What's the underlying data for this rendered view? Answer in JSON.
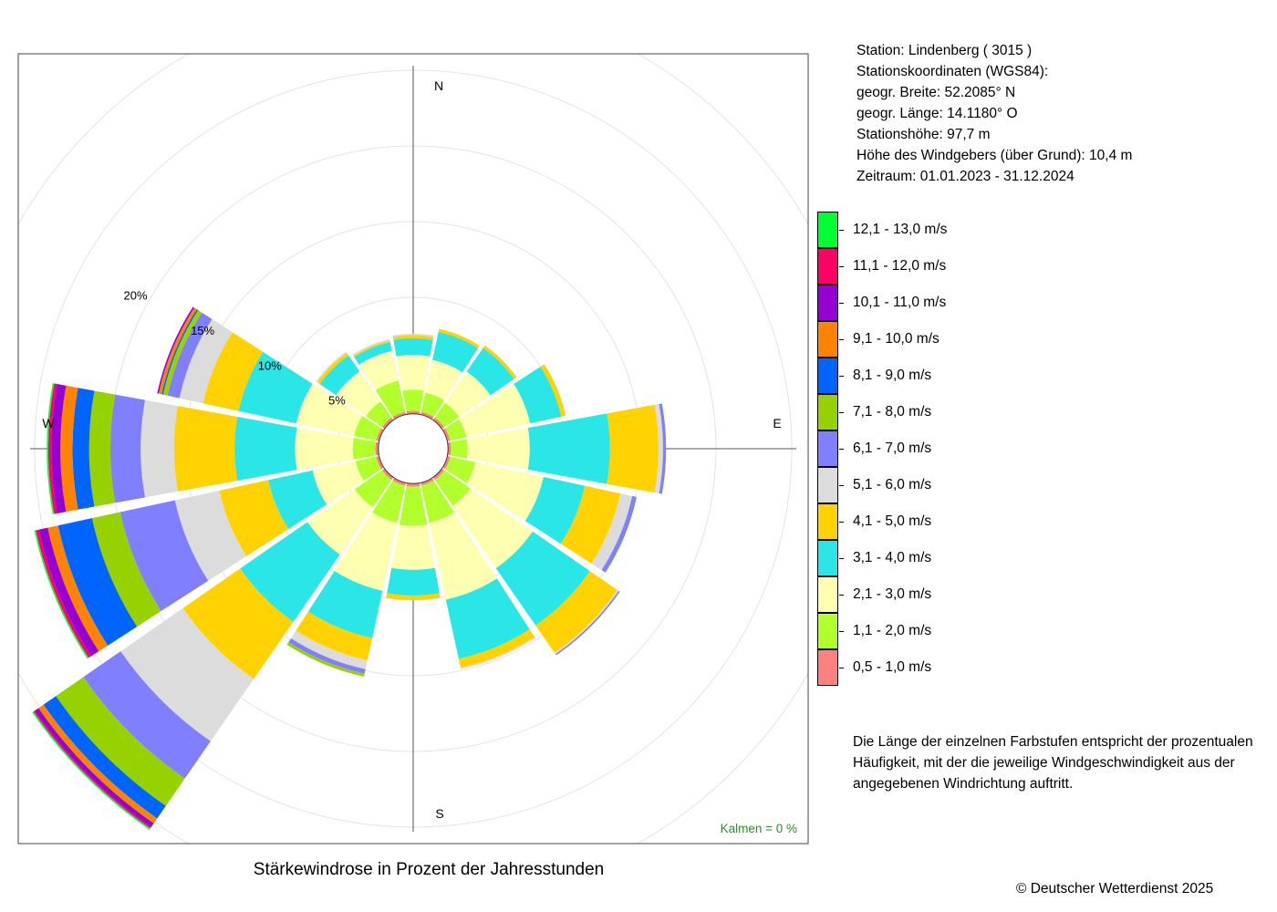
{
  "station": {
    "line1": "Station:  Lindenberg  ( 3015 )",
    "line2": "Stationskoordinaten (WGS84):",
    "line3": "geogr. Breite: 52.2085° N",
    "line4": "geogr. Länge: 14.1180° O",
    "line5": "Stationshöhe: 97,7 m",
    "line6": "Höhe des Windgebers (über Grund): 10,4 m",
    "line7": "Zeitraum: 01.01.2023 - 31.12.2024"
  },
  "note": "Die Länge der einzelnen Farbstufen entspricht der prozentualen Häufigkeit, mit der die jeweilige Windgeschwindigkeit aus der angegebenen Windrichtung auftritt.",
  "footer_title": "Stärkewindrose in Prozent der Jahresstunden",
  "copyright": "© Deutscher Wetterdienst  2025",
  "chart_data": {
    "type": "wind-rose",
    "title": "Stärkewindrose in Prozent der Jahresstunden",
    "directions": [
      "N",
      "NNE",
      "NE",
      "ENE",
      "E",
      "ESE",
      "SE",
      "SSE",
      "S",
      "SSW",
      "SW",
      "WSW",
      "W",
      "WNW",
      "NW",
      "NNW"
    ],
    "direction_angles": [
      0,
      22.5,
      45,
      67.5,
      90,
      112.5,
      135,
      157.5,
      180,
      202.5,
      225,
      247.5,
      270,
      292.5,
      315,
      337.5
    ],
    "compass_labels": [
      {
        "label": "N",
        "angle": 0
      },
      {
        "label": "E",
        "angle": 90
      },
      {
        "label": "S",
        "angle": 180
      },
      {
        "label": "W",
        "angle": 270
      }
    ],
    "radial_ticks": [
      5,
      10,
      15,
      20
    ],
    "radial_tick_labels": [
      "5%",
      "10%",
      "15%",
      "20%"
    ],
    "radial_tick_angle": 297.5,
    "calm_radius_percent": 2.3,
    "calm_label": "Kalmen  =  0 %",
    "speed_classes": [
      {
        "label": "0,5 - 1,0 m/s",
        "color": "#ff8080"
      },
      {
        "label": "1,1 - 2,0 m/s",
        "color": "#b2ff2e"
      },
      {
        "label": "2,1 - 3,0 m/s",
        "color": "#ffffb2"
      },
      {
        "label": "3,1 - 4,0 m/s",
        "color": "#2ae6e6"
      },
      {
        "label": "4,1 - 5,0 m/s",
        "color": "#ffd200"
      },
      {
        "label": "5,1 - 6,0 m/s",
        "color": "#dcdcdc"
      },
      {
        "label": "6,1 - 7,0 m/s",
        "color": "#8080ff"
      },
      {
        "label": "7,1 - 8,0 m/s",
        "color": "#96d200"
      },
      {
        "label": "8,1 - 9,0 m/s",
        "color": "#0064ff"
      },
      {
        "label": "9,1 - 10,0 m/s",
        "color": "#ff8200"
      },
      {
        "label": "10,1 - 11,0 m/s",
        "color": "#9600d2"
      },
      {
        "label": "11,1 - 12,0 m/s",
        "color": "#ff0064"
      },
      {
        "label": "12,1 - 13,0 m/s",
        "color": "#00ff32"
      }
    ],
    "sectors": [
      {
        "direction": "N",
        "cumulative": [
          2.5,
          3.9,
          6.2,
          7.3,
          7.5,
          7.6
        ]
      },
      {
        "direction": "NNE",
        "cumulative": [
          2.5,
          3.8,
          6.0,
          7.9,
          8.1
        ]
      },
      {
        "direction": "NE",
        "cumulative": [
          2.5,
          3.7,
          6.2,
          8.1,
          8.3
        ]
      },
      {
        "direction": "ENE",
        "cumulative": [
          2.5,
          3.6,
          7.9,
          10.0,
          10.3
        ]
      },
      {
        "direction": "E",
        "cumulative": [
          2.5,
          3.6,
          7.7,
          13.0,
          16.2,
          16.5,
          16.7
        ]
      },
      {
        "direction": "ESE",
        "cumulative": [
          2.5,
          4.2,
          8.8,
          11.6,
          14.0,
          14.8,
          15.1
        ]
      },
      {
        "direction": "SE",
        "cumulative": [
          2.5,
          4.6,
          9.6,
          14.2,
          16.4,
          16.5,
          16.6
        ]
      },
      {
        "direction": "SSE",
        "cumulative": [
          2.5,
          5.0,
          10.2,
          14.2,
          14.8,
          14.9
        ]
      },
      {
        "direction": "S",
        "cumulative": [
          2.5,
          5.1,
          8.0,
          9.7,
          10.0
        ]
      },
      {
        "direction": "SSW",
        "cumulative": [
          2.5,
          5.0,
          9.6,
          12.8,
          14.3,
          14.9,
          15.2,
          15.4
        ]
      },
      {
        "direction": "SW",
        "cumulative": [
          2.5,
          4.7,
          8.5,
          13.9,
          18.5,
          23.5,
          26.5,
          28.7,
          29.7,
          30.1,
          30.4,
          30.5,
          30.6
        ]
      },
      {
        "direction": "WSW",
        "cumulative": [
          2.5,
          3.9,
          6.8,
          9.8,
          13.1,
          16.1,
          19.8,
          21.7,
          24.0,
          24.7,
          25.3,
          25.5,
          25.6
        ]
      },
      {
        "direction": "W",
        "cumulative": [
          2.5,
          4.0,
          7.8,
          11.8,
          15.8,
          18.0,
          20.0,
          21.4,
          22.5,
          23.3,
          23.9,
          24.1,
          24.2
        ]
      },
      {
        "direction": "WNW",
        "cumulative": [
          2.5,
          4.0,
          7.9,
          11.8,
          14.2,
          15.8,
          16.6,
          16.9,
          17.0,
          17.2,
          17.3
        ]
      },
      {
        "direction": "NW",
        "cumulative": [
          2.5,
          3.8,
          6.2,
          7.5,
          7.7,
          7.8
        ]
      },
      {
        "direction": "NNW",
        "cumulative": [
          2.5,
          4.6,
          6.6,
          7.2,
          7.3,
          7.4
        ]
      }
    ]
  }
}
